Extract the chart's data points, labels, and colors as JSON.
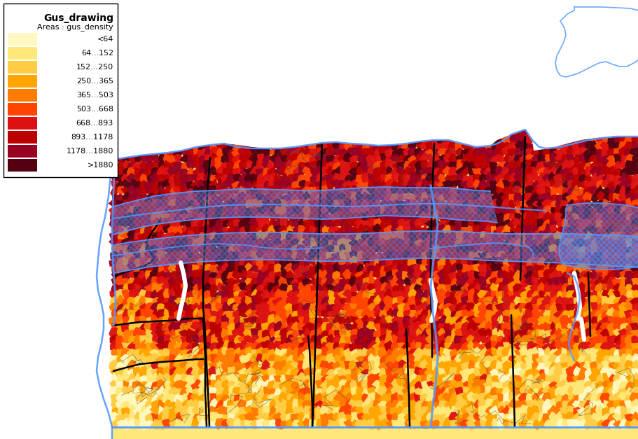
{
  "title": "Gus_drawing",
  "subtitle": "Areas : gus_density",
  "legend_labels": [
    "<64",
    "64...152",
    "152...250",
    "250...365",
    "365...503",
    "503...668",
    "668...893",
    "893...1178",
    "1178...1880",
    ">1880"
  ],
  "legend_colors": [
    "#FFF8C0",
    "#FFE87A",
    "#FFCC44",
    "#FFa500",
    "#FF7A00",
    "#FF4400",
    "#DD1111",
    "#BB0000",
    "#990022",
    "#550011"
  ],
  "bg_color": "#ffffff",
  "water_color": "#5599ff",
  "hatch_color": "#5599ff",
  "figsize": [
    9.12,
    6.27
  ],
  "dpi": 100
}
